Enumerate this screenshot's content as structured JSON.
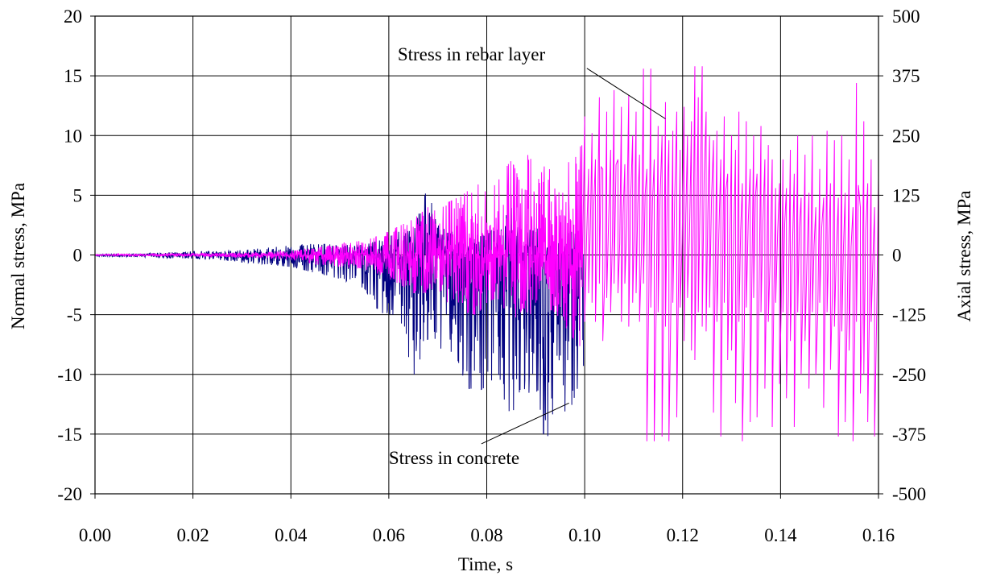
{
  "chart_data": {
    "type": "line",
    "title": "",
    "xlabel": "Time, s",
    "ylabel": "Normal stress, MPa",
    "y2label": "Axial stress, MPa",
    "xlim": [
      0,
      0.16
    ],
    "ylim": [
      -20,
      20
    ],
    "y2lim": [
      -500,
      500
    ],
    "grid": true,
    "legend": "none",
    "x_ticks": [
      "0.00",
      "0.02",
      "0.04",
      "0.06",
      "0.08",
      "0.10",
      "0.12",
      "0.14",
      "0.16"
    ],
    "y_ticks": [
      "20",
      "15",
      "10",
      "5",
      "0",
      "-5",
      "-10",
      "-15",
      "-20"
    ],
    "y2_ticks": [
      "500",
      "375",
      "250",
      "125",
      "0",
      "-125",
      "-250",
      "-375",
      "-500"
    ],
    "annotations": [
      {
        "text": "Stress in rebar layer",
        "series": "rebar",
        "label_at": [
          0.0618,
          16.3
        ],
        "arrow_to": [
          0.1165,
          11.4
        ]
      },
      {
        "text": "Stress in concrete",
        "series": "concrete",
        "label_at": [
          0.06,
          -17.5
        ],
        "arrow_to": [
          0.0968,
          -12.4
        ]
      }
    ],
    "series": [
      {
        "key": "concrete",
        "axis": "left",
        "color": "#000080",
        "envelope_x": [
          0.0,
          0.01,
          0.02,
          0.025,
          0.03,
          0.035,
          0.04,
          0.045,
          0.05,
          0.055,
          0.058,
          0.06,
          0.062,
          0.065,
          0.068,
          0.07,
          0.072,
          0.075,
          0.077,
          0.08,
          0.082,
          0.085,
          0.087,
          0.09,
          0.092,
          0.093,
          0.095,
          0.097,
          0.0995,
          0.0998
        ],
        "envelope_max": [
          0.1,
          0.1,
          0.3,
          0.3,
          0.4,
          0.6,
          0.8,
          1.0,
          0.8,
          0.9,
          1.2,
          1.5,
          2.0,
          2.0,
          5.8,
          2.5,
          2.0,
          2.5,
          1.5,
          2.0,
          2.0,
          4.0,
          1.5,
          2.5,
          1.0,
          1.0,
          1.0,
          2.0,
          1.5,
          0.0
        ],
        "envelope_min": [
          -0.1,
          -0.2,
          -0.3,
          -0.4,
          -0.6,
          -0.8,
          -1.0,
          -1.5,
          -2.0,
          -2.8,
          -4.8,
          -5.0,
          -5.0,
          -10.2,
          -7.0,
          -8.0,
          -7.5,
          -10.0,
          -11.7,
          -11.0,
          -10.0,
          -14.0,
          -11.0,
          -12.0,
          -17.0,
          -14.0,
          -14.7,
          -13.0,
          -10.0,
          -13.3
        ]
      },
      {
        "key": "rebar",
        "axis": "right",
        "color": "#FF00FF",
        "envelope_x": [
          0.0,
          0.01,
          0.02,
          0.03,
          0.04,
          0.045,
          0.05,
          0.055,
          0.058,
          0.06,
          0.062,
          0.065,
          0.068,
          0.07,
          0.072,
          0.075,
          0.078,
          0.08,
          0.082,
          0.085,
          0.087,
          0.089,
          0.09,
          0.092,
          0.094,
          0.096,
          0.098,
          0.0995
        ],
        "envelope_max": [
          1,
          2,
          3,
          5,
          8,
          15,
          25,
          30,
          40,
          50,
          60,
          75,
          100,
          90,
          110,
          125,
          150,
          130,
          150,
          200,
          150,
          240,
          150,
          200,
          150,
          180,
          220,
          230
        ],
        "envelope_min": [
          -1,
          -2,
          -3,
          -5,
          -10,
          -20,
          -25,
          -30,
          -40,
          -50,
          -60,
          -80,
          -80,
          -70,
          -100,
          -120,
          -125,
          -100,
          -90,
          -140,
          -120,
          -150,
          -100,
          -110,
          -120,
          -150,
          -180,
          -225
        ],
        "steps_x": [
          0.1,
          0.1008,
          0.1015,
          0.1022,
          0.103,
          0.1037,
          0.1045,
          0.1053,
          0.106,
          0.1068,
          0.1075,
          0.1082,
          0.109,
          0.1098,
          0.1105,
          0.1112,
          0.112,
          0.1127,
          0.1135,
          0.1142,
          0.115,
          0.1158,
          0.1165,
          0.1172,
          0.118,
          0.1188,
          0.1195,
          0.1203,
          0.121,
          0.1218,
          0.1225,
          0.1232,
          0.124,
          0.1248,
          0.1255,
          0.1263,
          0.127,
          0.1278,
          0.1285,
          0.1292,
          0.13,
          0.1308,
          0.1315,
          0.1322,
          0.133,
          0.1338,
          0.1345,
          0.1352,
          0.136,
          0.1368,
          0.1375,
          0.1383,
          0.139,
          0.1398,
          0.1405,
          0.1412,
          0.142,
          0.1428,
          0.1435,
          0.1442,
          0.145,
          0.1458,
          0.1465,
          0.1472,
          0.148,
          0.1488,
          0.1495,
          0.1502,
          0.151,
          0.1518,
          0.1525,
          0.1532,
          0.154,
          0.1548,
          0.1555,
          0.1563,
          0.157,
          0.1578,
          0.1585,
          0.1592,
          0.16
        ],
        "steps_hi": [
          290,
          180,
          255,
          200,
          330,
          180,
          300,
          220,
          345,
          200,
          310,
          190,
          335,
          250,
          300,
          210,
          390,
          180,
          390,
          200,
          270,
          250,
          320,
          240,
          260,
          300,
          220,
          310,
          250,
          280,
          395,
          330,
          395,
          300,
          250,
          240,
          260,
          200,
          290,
          170,
          250,
          220,
          300,
          150,
          280,
          180,
          250,
          170,
          270,
          200,
          230,
          200,
          140,
          150,
          200,
          140,
          220,
          170,
          250,
          120,
          210,
          130,
          250,
          100,
          180,
          120,
          260,
          150,
          240,
          120,
          250,
          130,
          200,
          100,
          360,
          100,
          280,
          150,
          200,
          100,
          160
        ],
        "steps_lo": [
          -140,
          -80,
          -100,
          -140,
          -60,
          -180,
          -90,
          -120,
          -60,
          -80,
          -140,
          -60,
          -150,
          -100,
          -80,
          -140,
          -60,
          -390,
          -110,
          -390,
          -120,
          -380,
          -150,
          -390,
          -100,
          -340,
          -110,
          -180,
          -90,
          -200,
          -220,
          -120,
          -150,
          -160,
          -110,
          -330,
          -140,
          -380,
          -100,
          -220,
          -200,
          -310,
          -140,
          -390,
          -110,
          -350,
          -90,
          -340,
          -120,
          -280,
          -140,
          -360,
          -100,
          -270,
          -120,
          -300,
          -180,
          -360,
          -120,
          -250,
          -180,
          -280,
          -120,
          -250,
          -100,
          -320,
          -120,
          -240,
          -150,
          -380,
          -160,
          -350,
          -200,
          -390,
          -140,
          -290,
          -250,
          -350,
          -140,
          -380,
          -250
        ]
      }
    ]
  }
}
